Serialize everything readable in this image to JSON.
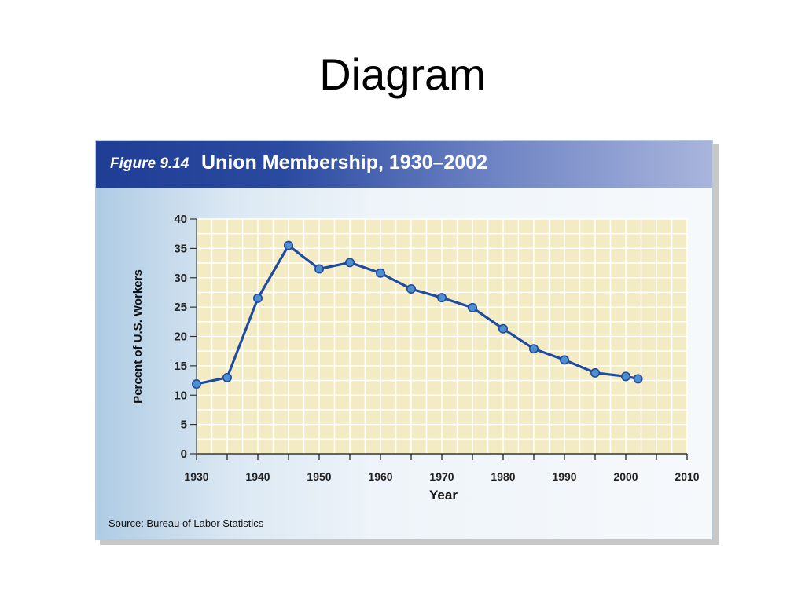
{
  "slide": {
    "title": "Diagram"
  },
  "figure": {
    "label": "Figure 9.14",
    "heading": "Union Membership, 1930–2002",
    "source": "Source: Bureau of Labor Statistics",
    "colors": {
      "header": "#1f3d94",
      "plot_background": "#f3ebc4",
      "grid": "#ffffff",
      "line": "#1f4ba0",
      "marker": "#4f8fd0"
    }
  },
  "chart_data": {
    "type": "line",
    "xlabel": "Year",
    "ylabel": "Percent of U.S. Workers",
    "xlim": [
      1930,
      2010
    ],
    "ylim": [
      0,
      40
    ],
    "x_ticks": [
      "1930",
      "1940",
      "1950",
      "1960",
      "1970",
      "1980",
      "1990",
      "2000",
      "2010"
    ],
    "y_ticks": [
      "0",
      "5",
      "10",
      "15",
      "20",
      "25",
      "30",
      "35",
      "40"
    ],
    "grid": true,
    "series": [
      {
        "x": [
          1930,
          1935,
          1940,
          1945,
          1950,
          1955,
          1960,
          1965,
          1970,
          1975,
          1980,
          1985,
          1990,
          1995,
          2000,
          2002
        ],
        "y": [
          11.9,
          13.0,
          26.5,
          35.5,
          31.5,
          32.6,
          30.8,
          28.1,
          26.6,
          24.9,
          21.3,
          17.9,
          16.0,
          13.8,
          13.2,
          12.8
        ]
      }
    ]
  }
}
